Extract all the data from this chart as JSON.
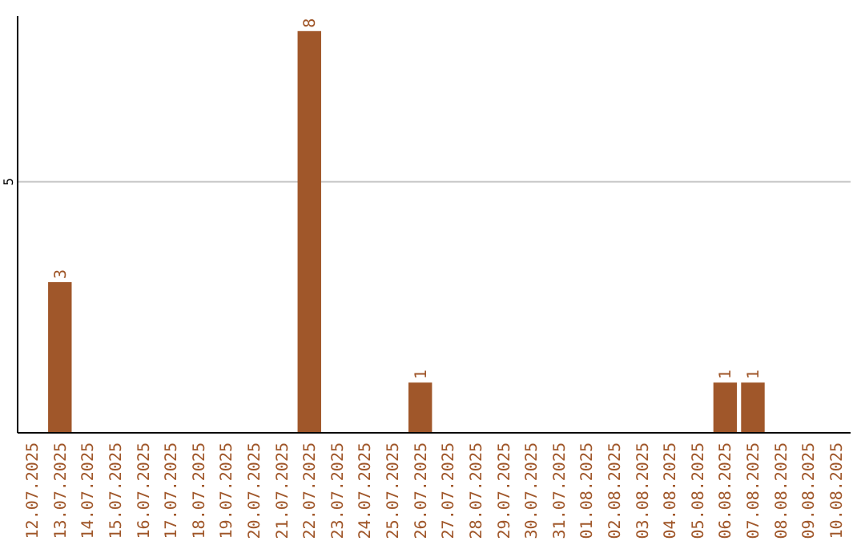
{
  "chart_data": {
    "type": "bar",
    "categories": [
      "12.07.2025",
      "13.07.2025",
      "14.07.2025",
      "15.07.2025",
      "16.07.2025",
      "17.07.2025",
      "18.07.2025",
      "19.07.2025",
      "20.07.2025",
      "21.07.2025",
      "22.07.2025",
      "23.07.2025",
      "24.07.2025",
      "25.07.2025",
      "26.07.2025",
      "27.07.2025",
      "28.07.2025",
      "29.07.2025",
      "30.07.2025",
      "31.07.2025",
      "01.08.2025",
      "02.08.2025",
      "03.08.2025",
      "04.08.2025",
      "05.08.2025",
      "06.08.2025",
      "07.08.2025",
      "08.08.2025",
      "09.08.2025",
      "10.08.2025"
    ],
    "values": [
      0,
      3,
      0,
      0,
      0,
      0,
      0,
      0,
      0,
      0,
      8,
      0,
      0,
      0,
      1,
      0,
      0,
      0,
      0,
      0,
      0,
      0,
      0,
      0,
      0,
      1,
      1,
      0,
      0,
      0
    ],
    "value_labels": [
      null,
      "3",
      null,
      null,
      null,
      null,
      null,
      null,
      null,
      null,
      "8",
      null,
      null,
      null,
      "1",
      null,
      null,
      null,
      null,
      null,
      null,
      null,
      null,
      null,
      null,
      "1",
      "1",
      null,
      null,
      null
    ],
    "color": "#a0572a",
    "ylim": [
      0,
      8.3
    ],
    "yticks": [
      5
    ],
    "grid": "y"
  }
}
